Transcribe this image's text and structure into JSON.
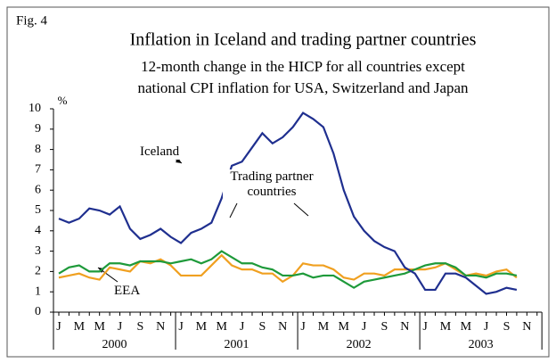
{
  "chart_data": {
    "type": "line",
    "figure_label": "Fig. 4",
    "title": "Inflation in Iceland and trading partner countries",
    "subtitle": [
      "12-month change in the HICP for all countries except",
      "national CPI inflation for USA, Switzerland and Japan"
    ],
    "ylabel": "%",
    "categories": [
      "J",
      null,
      "M",
      null,
      "M",
      null,
      "J",
      null,
      "S",
      null,
      "N",
      null,
      "J",
      null,
      "M",
      null,
      "M",
      null,
      "J",
      null,
      "S",
      null,
      "N",
      null,
      "J",
      null,
      "M",
      null,
      "M",
      null,
      "J",
      null,
      "S",
      null,
      "N",
      null,
      "J",
      null,
      "M",
      null,
      "M",
      null,
      "J",
      null,
      "S",
      null,
      "N",
      null
    ],
    "years": [
      "2000",
      "2001",
      "2002",
      "2003"
    ],
    "series": [
      {
        "name": "Iceland",
        "color": "#1f2f8f",
        "values": [
          4.6,
          4.4,
          4.6,
          5.1,
          5.0,
          4.8,
          5.2,
          4.1,
          3.6,
          3.8,
          4.1,
          3.7,
          3.4,
          3.9,
          4.1,
          4.4,
          5.6,
          7.2,
          7.4,
          8.1,
          8.8,
          8.3,
          8.6,
          9.1,
          9.8,
          9.5,
          9.1,
          7.8,
          6.0,
          4.7,
          4.0,
          3.5,
          3.2,
          3.0,
          2.2,
          1.9,
          1.1,
          1.1,
          1.9,
          1.9,
          1.7,
          1.3,
          0.9,
          1.0,
          1.2,
          1.1,
          null,
          null
        ]
      },
      {
        "name": "Trading partner countries",
        "color": "#1e9a3a",
        "values": [
          1.9,
          2.2,
          2.3,
          2.0,
          2.0,
          2.4,
          2.4,
          2.3,
          2.5,
          2.5,
          2.5,
          2.4,
          2.5,
          2.6,
          2.4,
          2.6,
          3.0,
          2.7,
          2.4,
          2.4,
          2.2,
          2.1,
          1.8,
          1.8,
          1.9,
          1.7,
          1.8,
          1.8,
          1.5,
          1.2,
          1.5,
          1.6,
          1.7,
          1.8,
          1.9,
          2.1,
          2.3,
          2.4,
          2.4,
          2.2,
          1.8,
          1.8,
          1.7,
          1.9,
          1.9,
          1.8,
          null,
          null
        ]
      },
      {
        "name": "EEA",
        "color": "#f0a020",
        "values": [
          1.7,
          1.8,
          1.9,
          1.7,
          1.6,
          2.2,
          2.1,
          2.0,
          2.5,
          2.4,
          2.6,
          2.3,
          1.8,
          1.8,
          1.8,
          2.3,
          2.8,
          2.3,
          2.1,
          2.1,
          1.9,
          1.9,
          1.5,
          1.8,
          2.4,
          2.3,
          2.3,
          2.1,
          1.7,
          1.6,
          1.9,
          1.9,
          1.8,
          2.1,
          2.1,
          2.1,
          2.1,
          2.2,
          2.4,
          2.1,
          1.8,
          1.9,
          1.8,
          2.0,
          2.1,
          1.7,
          null,
          null
        ]
      }
    ],
    "ylim": [
      0,
      10
    ],
    "yticks": [
      0,
      1,
      2,
      3,
      4,
      5,
      6,
      7,
      8,
      9,
      10
    ]
  }
}
